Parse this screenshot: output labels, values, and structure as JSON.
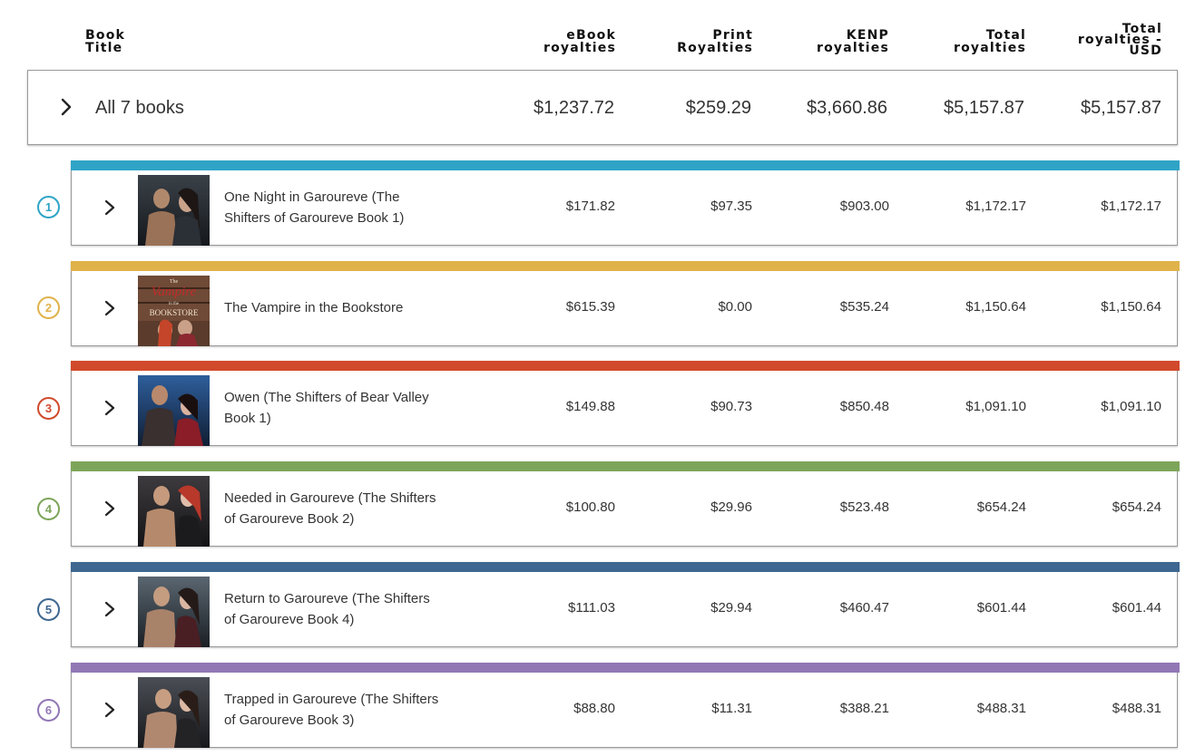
{
  "headers": {
    "title": [
      "Book",
      "Title"
    ],
    "ebook": [
      "eBook",
      "royalties"
    ],
    "print": [
      "Print",
      "Royalties"
    ],
    "kenp": [
      "KENP",
      "royalties"
    ],
    "total": [
      "Total",
      "royalties"
    ],
    "total_usd": [
      "Total",
      "royalties -",
      "USD"
    ]
  },
  "summary": {
    "chevron_icon": "chevron-right-icon",
    "label": "All 7 books",
    "ebook": "$1,237.72",
    "print": "$259.29",
    "kenp": "$3,660.86",
    "total": "$5,157.87",
    "total_usd": "$5,157.87"
  },
  "books": [
    {
      "num": "1",
      "color": "#2fa4c6",
      "cover_icon": "book-cover-couple-dark-forest",
      "title_lines": [
        "One Night in Garoureve (The",
        "Shifters of Garoureve Book 1)"
      ],
      "ebook": "$171.82",
      "print": "$97.35",
      "kenp": "$903.00",
      "total": "$1,172.17",
      "total_usd": "$1,172.17"
    },
    {
      "num": "2",
      "color": "#e0b24a",
      "cover_icon": "book-cover-bookstore-vampire",
      "title_lines": [
        "The Vampire in the Bookstore"
      ],
      "ebook": "$615.39",
      "print": "$0.00",
      "kenp": "$535.24",
      "total": "$1,150.64",
      "total_usd": "$1,150.64"
    },
    {
      "num": "3",
      "color": "#d14a2c",
      "cover_icon": "book-cover-couple-blue-night",
      "title_lines": [
        "Owen (The Shifters of Bear Valley",
        "Book 1)"
      ],
      "ebook": "$149.88",
      "print": "$90.73",
      "kenp": "$850.48",
      "total": "$1,091.10",
      "total_usd": "$1,091.10"
    },
    {
      "num": "4",
      "color": "#7da55a",
      "cover_icon": "book-cover-couple-redhead",
      "title_lines": [
        "Needed in Garoureve (The Shifters",
        "of Garoureve Book 2)"
      ],
      "ebook": "$100.80",
      "print": "$29.96",
      "kenp": "$523.48",
      "total": "$654.24",
      "total_usd": "$654.24"
    },
    {
      "num": "5",
      "color": "#3f6791",
      "cover_icon": "book-cover-couple-dark-hair",
      "title_lines": [
        "Return to Garoureve (The Shifters",
        "of Garoureve Book 4)"
      ],
      "ebook": "$111.03",
      "print": "$29.94",
      "kenp": "$460.47",
      "total": "$601.44",
      "total_usd": "$601.44"
    },
    {
      "num": "6",
      "color": "#9277b5",
      "cover_icon": "book-cover-couple-embrace",
      "title_lines": [
        "Trapped in Garoureve (The Shifters",
        "of Garoureve Book 3)"
      ],
      "ebook": "$88.80",
      "print": "$11.31",
      "kenp": "$388.21",
      "total": "$488.31",
      "total_usd": "$488.31"
    }
  ],
  "cover_art": {
    "book2_text": [
      "The",
      "Vampire",
      "in the",
      "BOOKSTORE"
    ]
  }
}
